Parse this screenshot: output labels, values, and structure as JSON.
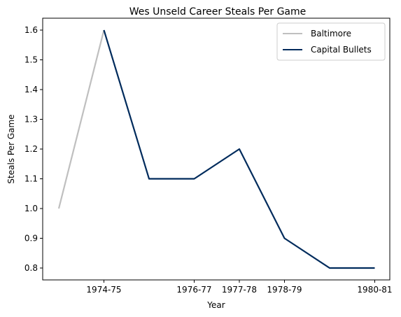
{
  "chart_data": {
    "type": "line",
    "title": "Wes Unseld Career Steals Per Game",
    "xlabel": "Year",
    "ylabel": "Steals Per Game",
    "x_ticks_shown": [
      "1974-75",
      "1976-77",
      "1977-78",
      "1978-79",
      "1980-81"
    ],
    "ylim": [
      0.76,
      1.64
    ],
    "y_ticks": [
      "0.8",
      "0.9",
      "1.0",
      "1.1",
      "1.2",
      "1.3",
      "1.4",
      "1.5",
      "1.6"
    ],
    "grid": false,
    "legend_position": "top-right",
    "series": [
      {
        "name": "Baltimore",
        "color": "#bfbfbf",
        "x": [
          "1973-74",
          "1974-75"
        ],
        "values": [
          1.0,
          1.6
        ]
      },
      {
        "name": "Capital Bullets",
        "color": "#002b5c",
        "x": [
          "1974-75",
          "1975-76",
          "1976-77",
          "1977-78",
          "1978-79",
          "1979-80",
          "1980-81"
        ],
        "values": [
          1.6,
          1.1,
          1.1,
          1.2,
          0.9,
          0.8,
          0.8
        ]
      }
    ]
  }
}
